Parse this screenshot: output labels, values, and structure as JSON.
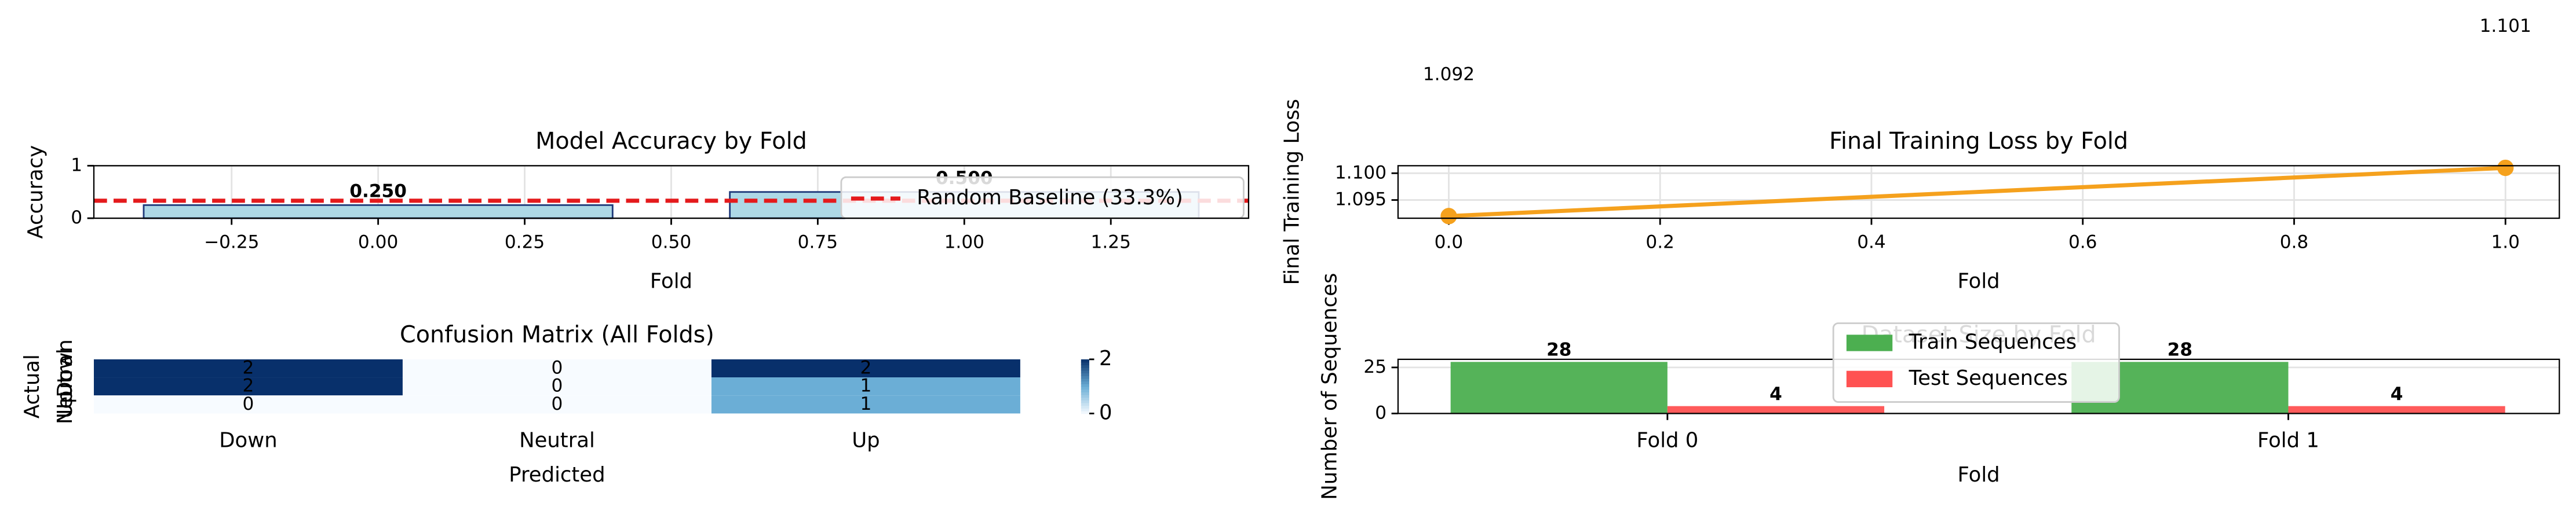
{
  "chart_data": [
    {
      "type": "bar",
      "title": "Model Accuracy by Fold",
      "xlabel": "Fold",
      "ylabel": "Accuracy",
      "x": [
        0,
        1
      ],
      "values": [
        0.25,
        0.5
      ],
      "value_labels": [
        "0.250",
        "0.500"
      ],
      "color": "#add8e6",
      "edgecolor": "#1f3a7a",
      "xlim": [
        -0.485,
        1.485
      ],
      "xticks": [
        {
          "value": -0.25,
          "label": "−0.25"
        },
        {
          "value": 0,
          "label": "0.00"
        },
        {
          "value": 0.25,
          "label": "0.25"
        },
        {
          "value": 0.5,
          "label": "0.50"
        },
        {
          "value": 0.75,
          "label": "0.75"
        },
        {
          "value": 1,
          "label": "1.00"
        },
        {
          "value": 1.25,
          "label": "1.25"
        }
      ],
      "ylim": [
        0,
        1
      ],
      "yticks": [
        0,
        1
      ],
      "grid": true,
      "hlines": [
        {
          "name": "Random Baseline (33.3%)",
          "value": 0.333,
          "color": "#e41a1c"
        }
      ],
      "legend": "upper right"
    },
    {
      "type": "line",
      "title": "Final Training Loss by Fold",
      "xlabel": "Fold",
      "ylabel": "Final Training Loss",
      "x": [
        0,
        1
      ],
      "values": [
        1.092,
        1.101
      ],
      "color": "#f5a11d",
      "xlim": [
        -0.048,
        1.051
      ],
      "xticks": [
        {
          "value": 0,
          "label": "0.0"
        },
        {
          "value": 0.2,
          "label": "0.2"
        },
        {
          "value": 0.4,
          "label": "0.4"
        },
        {
          "value": 0.6,
          "label": "0.6"
        },
        {
          "value": 0.8,
          "label": "0.8"
        },
        {
          "value": 1,
          "label": "1.0"
        }
      ],
      "ylim": [
        1.0916,
        1.1014
      ],
      "yticks": [
        1.095,
        {
          "value": 1.1,
          "label": "1.100"
        }
      ],
      "grid": true
    },
    {
      "type": "heatmap",
      "title": "Confusion Matrix (All Folds)",
      "xlabel": "Predicted",
      "ylabel": "Actual",
      "x_categories": [
        "Down",
        "Neutral",
        "Up"
      ],
      "y_categories": [
        "Down",
        "Neutral",
        "Up"
      ],
      "values": [
        [
          2,
          0,
          2
        ],
        [
          2,
          0,
          1
        ],
        [
          0,
          0,
          1
        ]
      ],
      "colormap": "Blues",
      "clim": [
        0,
        2
      ],
      "cticks": [
        0,
        2
      ]
    },
    {
      "type": "grouped_bar",
      "title": "Dataset Size by Fold",
      "xlabel": "Fold",
      "ylabel": "Number of Sequences",
      "categories": [
        "Fold 0",
        "Fold 1"
      ],
      "series": [
        {
          "name": "Train Sequences",
          "color": "#4caf50",
          "values": [
            28,
            28
          ]
        },
        {
          "name": "Test Sequences",
          "color": "#ff5252",
          "values": [
            4,
            4
          ]
        }
      ],
      "ylim": [
        0,
        29.4
      ],
      "yticks": [
        0,
        25
      ],
      "grid": true,
      "legend": "upper center"
    }
  ]
}
